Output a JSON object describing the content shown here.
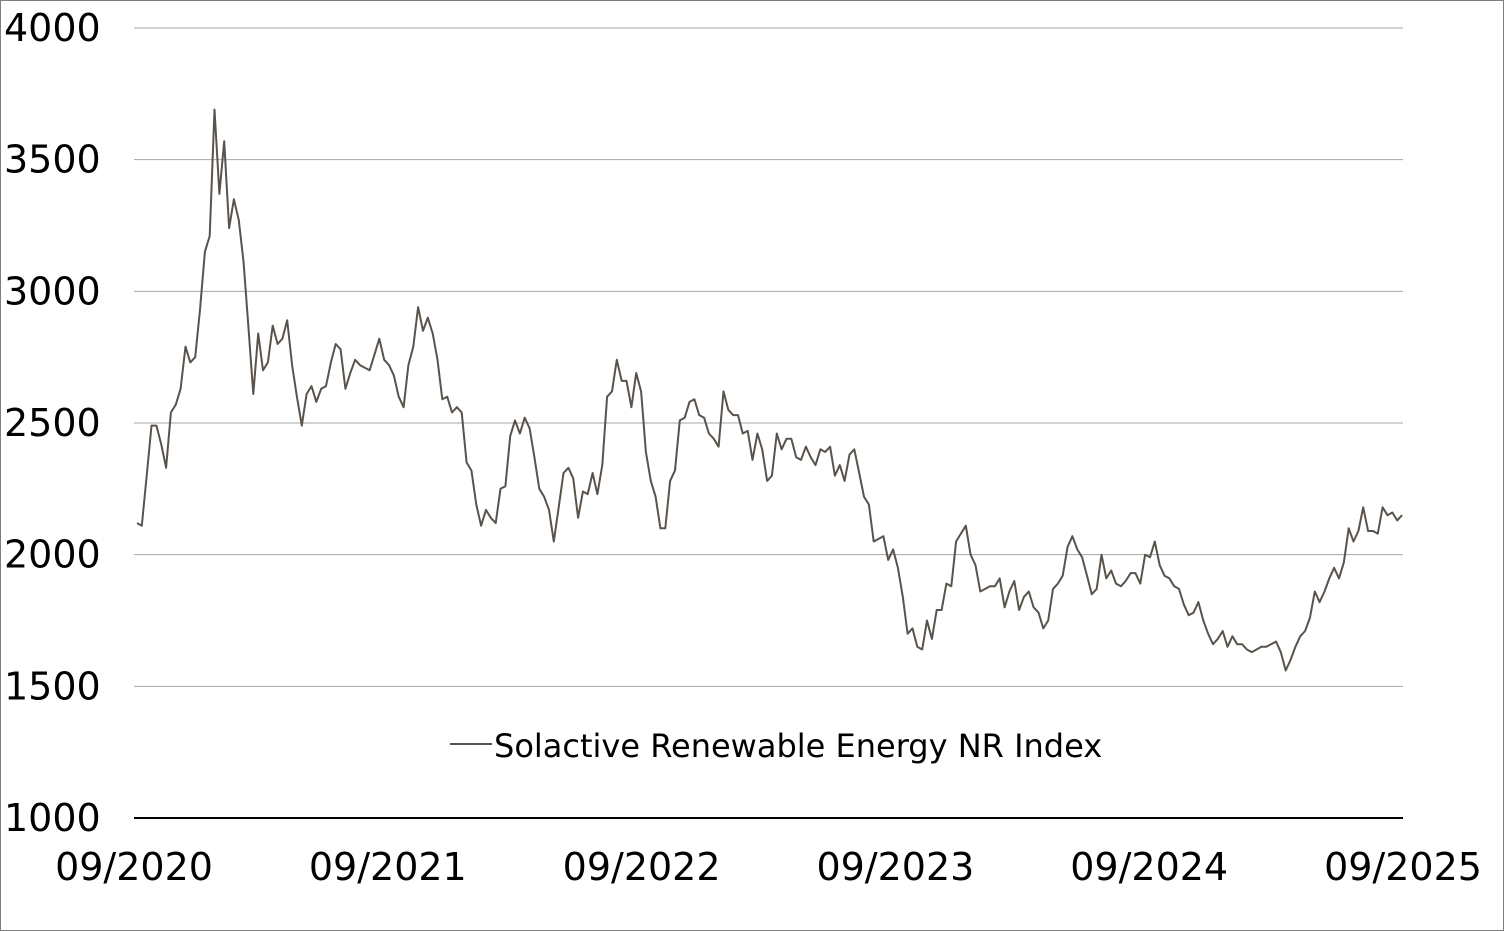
{
  "chart_data": {
    "type": "line",
    "title": "",
    "xlabel": "",
    "ylabel": "",
    "ylim": [
      1000,
      4000
    ],
    "yticks": [
      1000,
      1500,
      2000,
      2500,
      3000,
      3500,
      4000
    ],
    "xlim": [
      "2020-09",
      "2025-09"
    ],
    "xticks": [
      "09/2020",
      "09/2021",
      "09/2022",
      "09/2023",
      "09/2024",
      "09/2025"
    ],
    "grid": "horizontal",
    "legend": "inside-bottom-center",
    "series": [
      {
        "name": "Solactive Renewable Energy NR Index",
        "color": "#5a534c",
        "frequency": "weekly",
        "start": "2020-09",
        "values": [
          2120,
          2110,
          2300,
          2490,
          2490,
          2420,
          2330,
          2540,
          2570,
          2630,
          2790,
          2730,
          2750,
          2930,
          3150,
          3210,
          3690,
          3370,
          3570,
          3240,
          3350,
          3270,
          3110,
          2860,
          2610,
          2840,
          2700,
          2730,
          2870,
          2800,
          2820,
          2890,
          2720,
          2600,
          2490,
          2610,
          2640,
          2580,
          2630,
          2640,
          2730,
          2800,
          2780,
          2630,
          2690,
          2740,
          2720,
          2710,
          2700,
          2760,
          2820,
          2740,
          2720,
          2680,
          2600,
          2560,
          2720,
          2790,
          2940,
          2850,
          2900,
          2840,
          2740,
          2590,
          2600,
          2540,
          2560,
          2540,
          2350,
          2320,
          2190,
          2110,
          2170,
          2140,
          2120,
          2250,
          2260,
          2450,
          2510,
          2460,
          2520,
          2480,
          2370,
          2250,
          2220,
          2170,
          2050,
          2180,
          2310,
          2330,
          2290,
          2140,
          2240,
          2230,
          2310,
          2230,
          2340,
          2600,
          2620,
          2740,
          2660,
          2660,
          2560,
          2690,
          2620,
          2390,
          2280,
          2220,
          2100,
          2100,
          2280,
          2320,
          2510,
          2520,
          2580,
          2590,
          2530,
          2520,
          2460,
          2440,
          2410,
          2620,
          2550,
          2530,
          2530,
          2460,
          2470,
          2360,
          2460,
          2400,
          2280,
          2300,
          2460,
          2400,
          2440,
          2440,
          2370,
          2360,
          2410,
          2370,
          2340,
          2400,
          2390,
          2410,
          2300,
          2340,
          2280,
          2380,
          2400,
          2310,
          2220,
          2190,
          2050,
          2060,
          2070,
          1980,
          2020,
          1950,
          1840,
          1700,
          1720,
          1650,
          1640,
          1750,
          1680,
          1790,
          1790,
          1890,
          1880,
          2050,
          2080,
          2110,
          2000,
          1960,
          1860,
          1870,
          1880,
          1880,
          1910,
          1800,
          1860,
          1900,
          1790,
          1840,
          1860,
          1800,
          1780,
          1720,
          1750,
          1870,
          1890,
          1920,
          2030,
          2070,
          2020,
          1990,
          1920,
          1850,
          1870,
          2000,
          1910,
          1940,
          1890,
          1880,
          1900,
          1930,
          1930,
          1890,
          2000,
          1990,
          2050,
          1960,
          1920,
          1910,
          1880,
          1870,
          1810,
          1770,
          1780,
          1820,
          1750,
          1700,
          1660,
          1680,
          1710,
          1650,
          1690,
          1660,
          1660,
          1640,
          1630,
          1640,
          1650,
          1650,
          1660,
          1670,
          1630,
          1560,
          1600,
          1650,
          1690,
          1710,
          1760,
          1860,
          1820,
          1860,
          1910,
          1950,
          1910,
          1970,
          2100,
          2050,
          2090,
          2180,
          2090,
          2090,
          2080,
          2180,
          2150,
          2160,
          2130,
          2150
        ]
      }
    ]
  }
}
